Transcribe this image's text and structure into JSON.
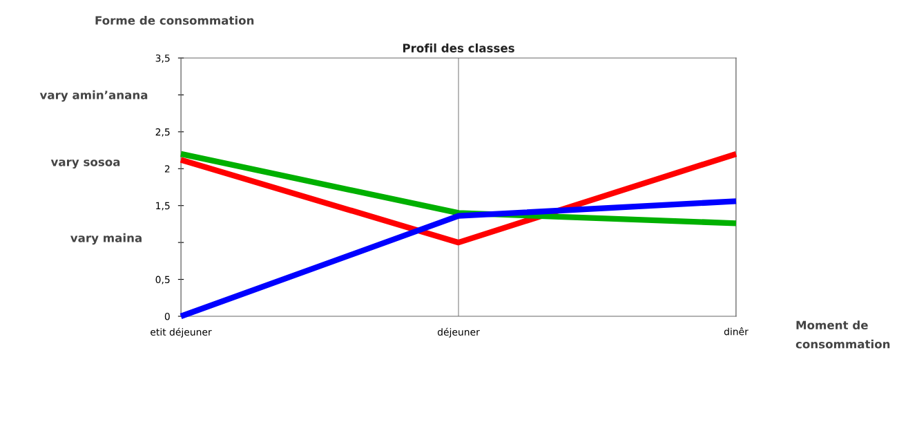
{
  "chart_data": {
    "type": "line",
    "title": "Profil des classes",
    "ylabel": "Forme de consommation",
    "xlabel": "Moment de consommation",
    "categories": [
      "etit déjeuner",
      "déjeuner",
      "dinêr"
    ],
    "series": [
      {
        "color": "#ff0000",
        "values": [
          2.12,
          1.0,
          2.2
        ]
      },
      {
        "color": "#00b000",
        "values": [
          2.2,
          1.4,
          1.26
        ]
      },
      {
        "color": "#0000ff",
        "values": [
          0,
          1.36,
          1.56
        ]
      }
    ],
    "ylim": [
      0,
      3.5
    ],
    "yticks": [
      0,
      {
        "value": 0.5,
        "label": "0,5"
      },
      {
        "value": 1,
        "label": null
      },
      {
        "value": 1.5,
        "label": "1,5"
      },
      2,
      {
        "value": 2.5,
        "label": "2,5"
      },
      {
        "value": 3,
        "label": null
      },
      {
        "value": 3.5,
        "label": "3,5"
      }
    ],
    "grid": "x",
    "legend": false,
    "marker": "none",
    "line_style": "solid",
    "annotations": [
      "vary amin’anana",
      "vary sosoa",
      "vary maina"
    ]
  }
}
